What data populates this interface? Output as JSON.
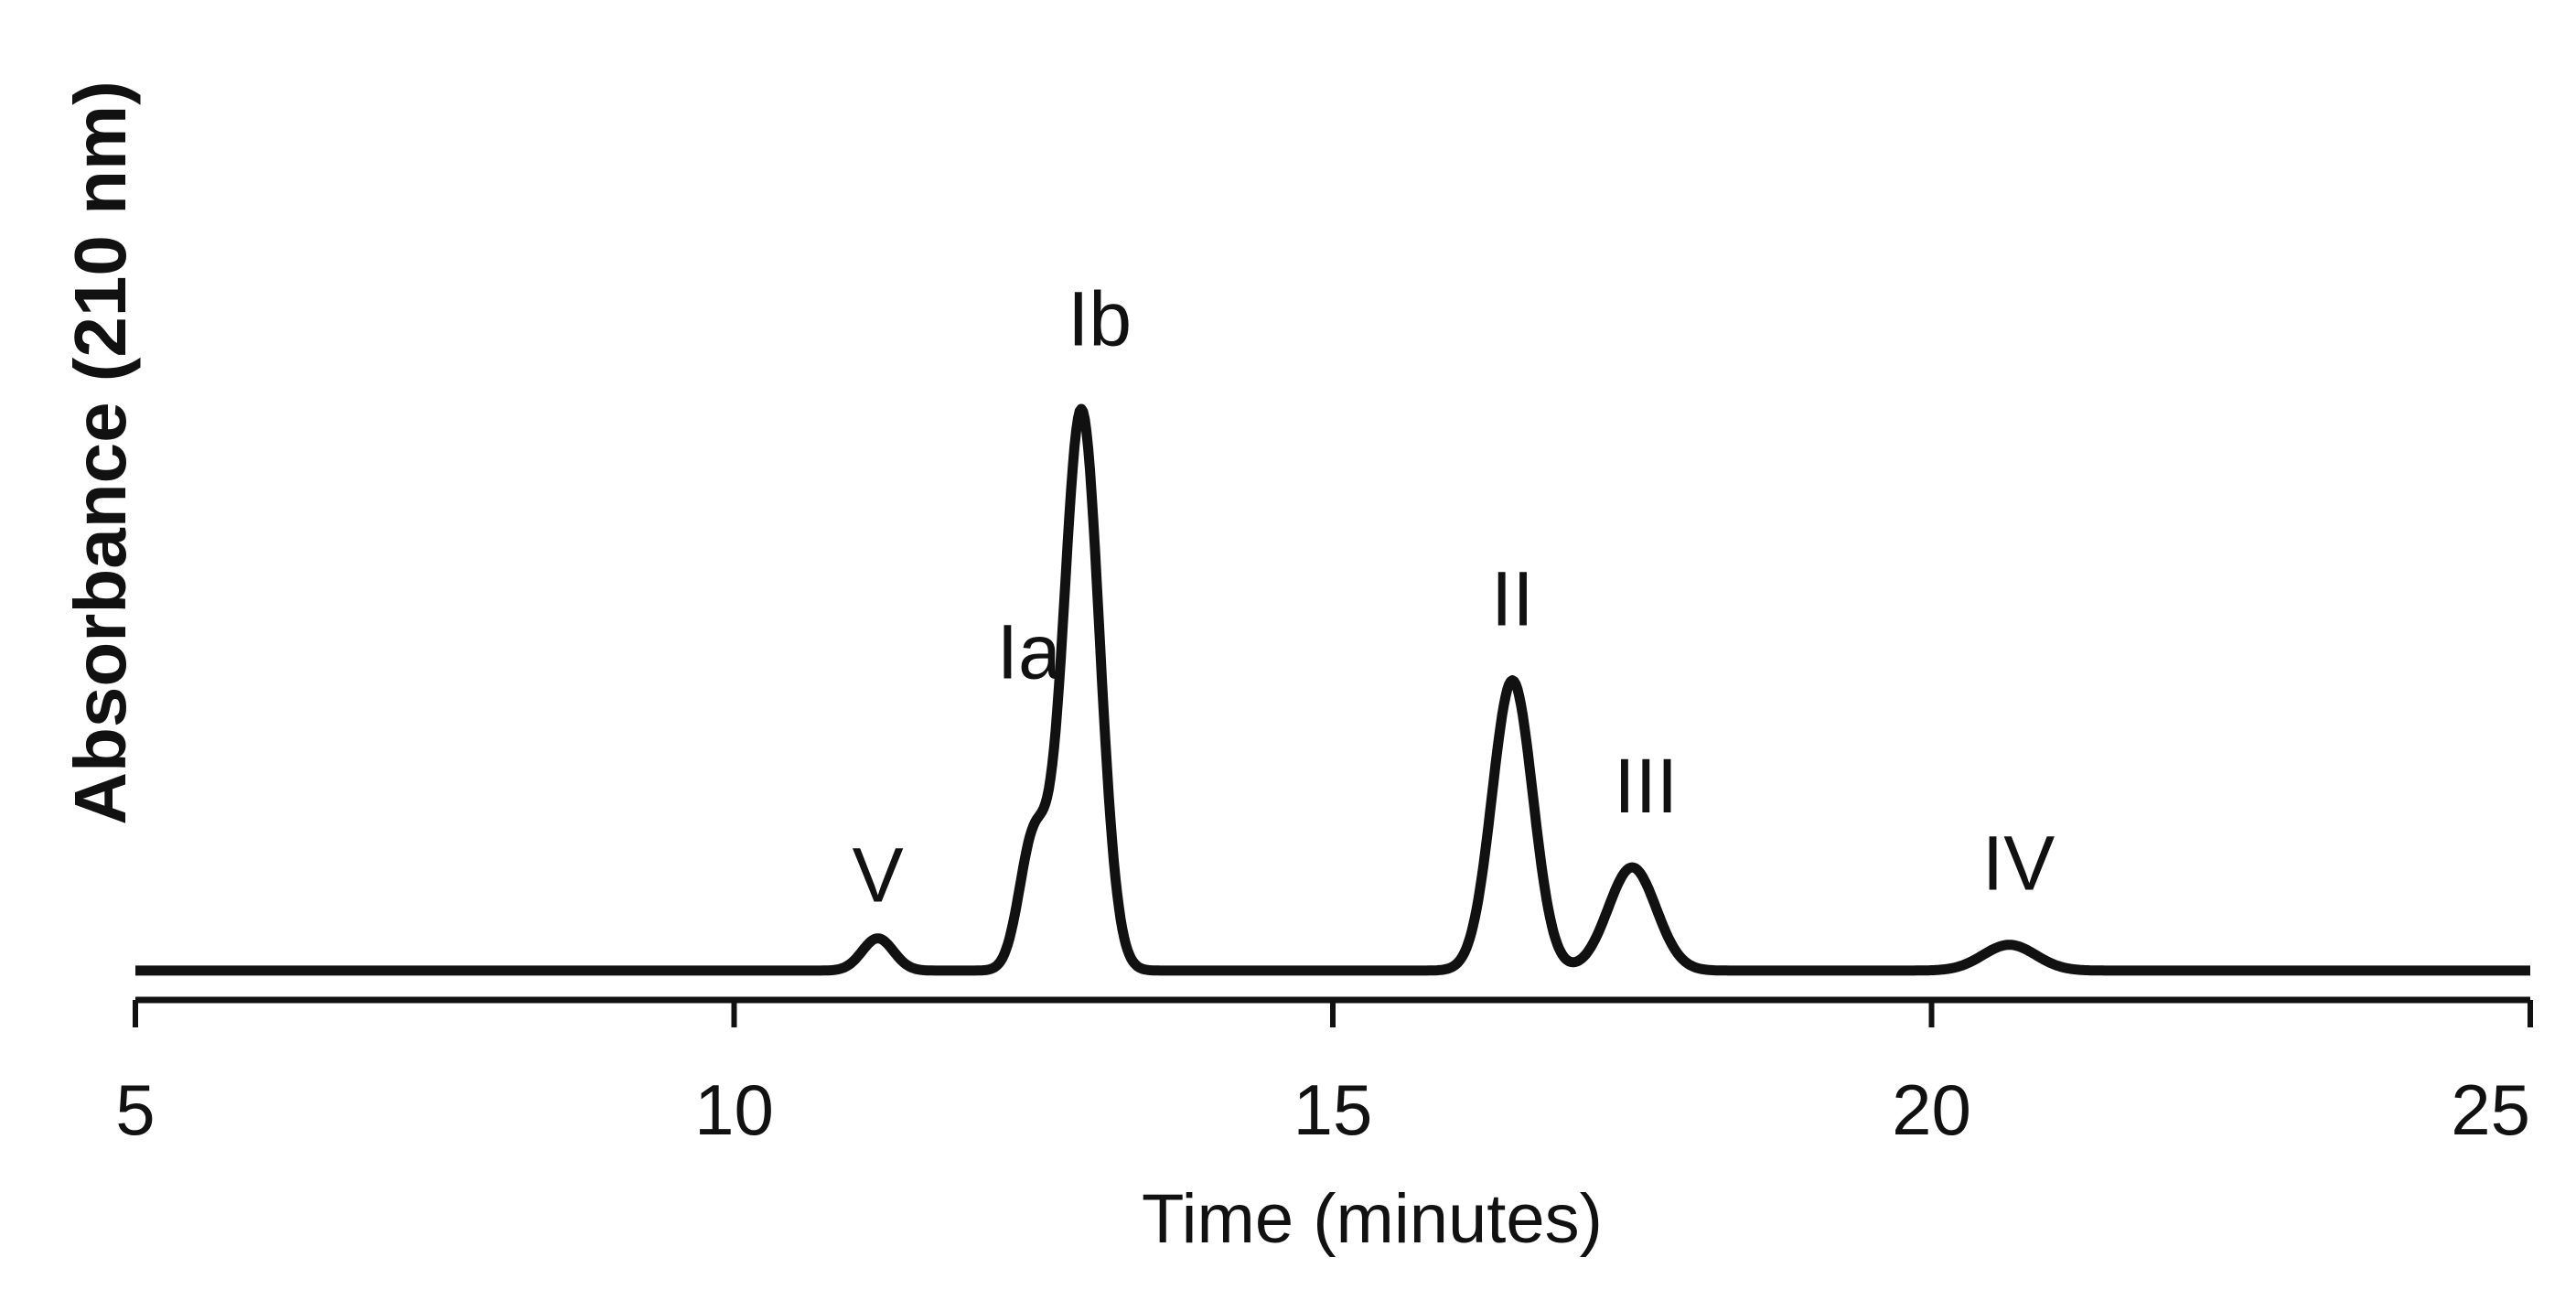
{
  "chart_data": {
    "type": "line",
    "title": "",
    "xlabel": "Time (minutes)",
    "ylabel": "Absorbance (210 nm)",
    "xlim": [
      5,
      25
    ],
    "ylim": [
      0,
      1.0
    ],
    "xticks": [
      5,
      10,
      15,
      20,
      25
    ],
    "x_tick_labels": [
      "5",
      "10",
      "15",
      "20",
      "25"
    ],
    "grid": false,
    "legend": "none",
    "line_color": "#111111",
    "baseline": 0.02,
    "peaks": [
      {
        "label": "V",
        "x": 11.2,
        "height": 0.05,
        "width": 0.13
      },
      {
        "label": "Ia",
        "x": 12.5,
        "height": 0.2,
        "width": 0.12
      },
      {
        "label": "Ib",
        "x": 12.9,
        "height": 0.87,
        "width": 0.15
      },
      {
        "label": "II",
        "x": 16.5,
        "height": 0.45,
        "width": 0.17
      },
      {
        "label": "III",
        "x": 17.5,
        "height": 0.16,
        "width": 0.2
      },
      {
        "label": "IV",
        "x": 20.65,
        "height": 0.04,
        "width": 0.22
      }
    ]
  }
}
